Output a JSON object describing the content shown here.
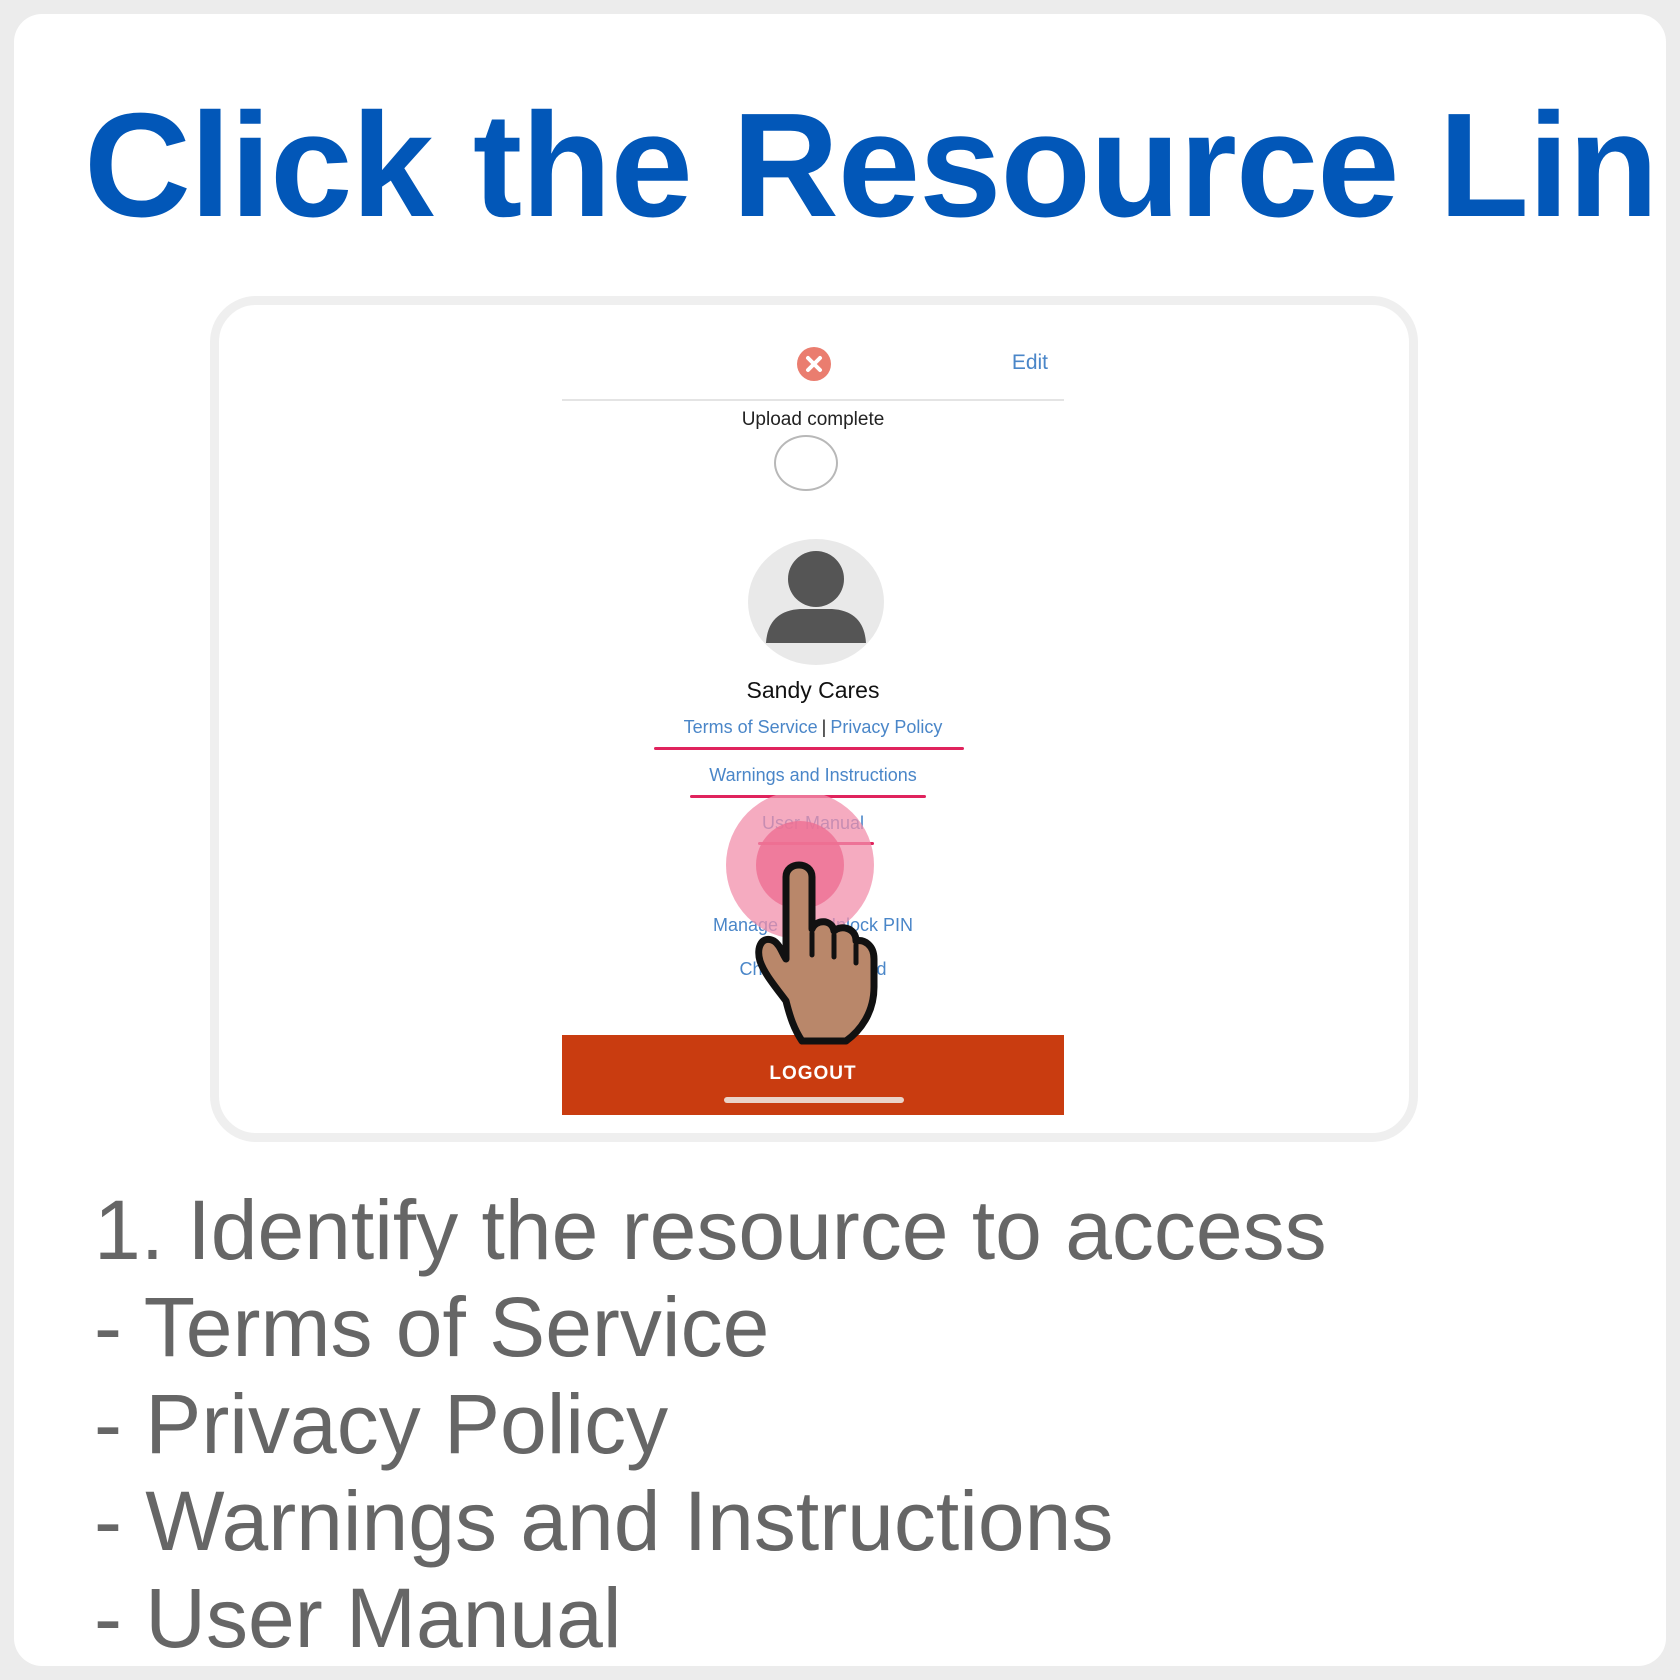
{
  "heading": "Click the Resource Link",
  "screen": {
    "edit_label": "Edit",
    "upload_status": "Upload complete",
    "user_name": "Sandy Cares",
    "links": {
      "terms": "Terms of Service",
      "separator": "|",
      "privacy": "Privacy Policy",
      "warnings": "Warnings and Instructions",
      "manual": "User Manual",
      "pin": "Manage your Unlock PIN",
      "password": "Change Password"
    },
    "logout_label": "LOGOUT",
    "colors": {
      "link": "#4a86c8",
      "underline": "#e0235d",
      "logout": "#c93c10",
      "close": "#ea7d6f"
    }
  },
  "instructions": {
    "step": "1. Identify the resource to access",
    "items": [
      "- Terms of Service",
      "- Privacy Policy",
      "- Warnings and Instructions",
      "- User Manual"
    ]
  },
  "colors": {
    "heading": "#0257b8",
    "body_text": "#666666",
    "pointer_skin": "#b9876a",
    "pointer_ring": "#f28fab"
  },
  "icons": [
    "close-icon",
    "avatar-icon",
    "hand-pointer-icon"
  ]
}
